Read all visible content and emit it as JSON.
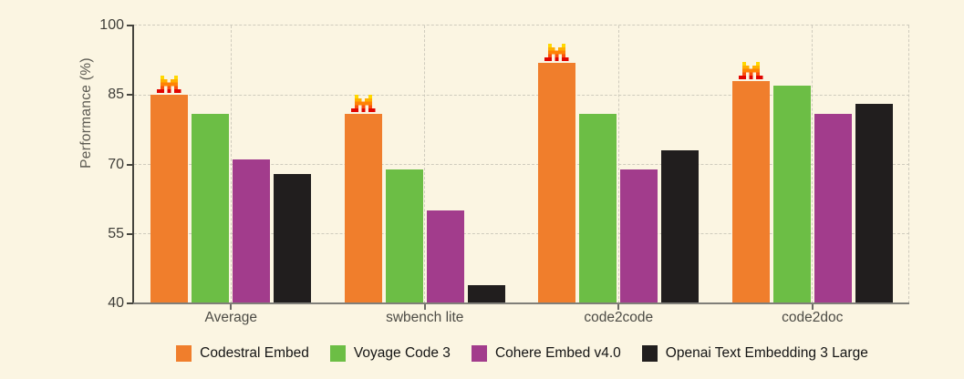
{
  "chart_data": {
    "type": "bar",
    "title": "",
    "xlabel": "",
    "ylabel": "Performance (%)",
    "ylim": [
      40,
      100
    ],
    "yticks": [
      40,
      55,
      70,
      85,
      100
    ],
    "grid": "dashed, horizontal at yticks and vertical at category centers plus right edge",
    "legend_position": "bottom",
    "categories": [
      "Average",
      "swbench lite",
      "code2code",
      "code2doc"
    ],
    "series": [
      {
        "name": "Codestral Embed",
        "color": "#F07E2C",
        "values": [
          85,
          81,
          92,
          88
        ],
        "marker": "mistral-logo"
      },
      {
        "name": "Voyage Code 3",
        "color": "#6CBE45",
        "values": [
          81,
          69,
          81,
          87
        ]
      },
      {
        "name": "Cohere Embed v4.0",
        "color": "#A23C8C",
        "values": [
          71,
          60,
          69,
          81
        ]
      },
      {
        "name": "Openai Text Embedding 3 Large",
        "color": "#211E1E",
        "values": [
          68,
          44,
          73,
          83
        ]
      }
    ]
  },
  "colors": {
    "background": "#FBF5E2",
    "grid": "#CFCBBD",
    "axis_left": "#45443E",
    "axis_bottom": "#807F79",
    "tick_label": "#3E3D38",
    "category_label": "#4C4B45",
    "ylabel_text": "#5C5A52",
    "legend_text": "#141414",
    "logo_palette": [
      "#FFD800",
      "#FFAF00",
      "#FF8205",
      "#FA500F",
      "#E10500"
    ]
  }
}
